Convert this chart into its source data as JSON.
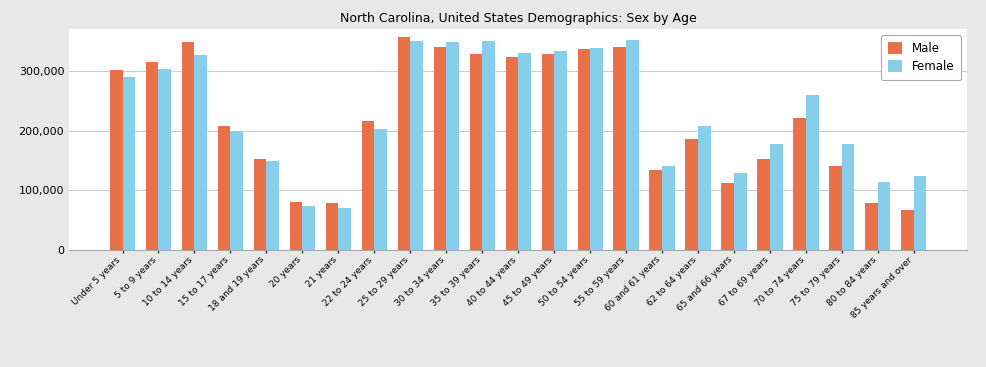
{
  "title": "North Carolina, United States Demographics: Sex by Age",
  "categories": [
    "Under 5 years",
    "5 to 9 years",
    "10 to 14 years",
    "15 to 17 years",
    "18 and 19 years",
    "20 years",
    "21 years",
    "22 to 24 years",
    "25 to 29 years",
    "30 to 34 years",
    "35 to 39 years",
    "40 to 44 years",
    "45 to 49 years",
    "50 to 54 years",
    "55 to 59 years",
    "60 and 61 years",
    "62 to 64 years",
    "65 and 66 years",
    "67 to 69 years",
    "70 to 74 years",
    "75 to 79 years",
    "80 to 84 years",
    "85 years and over"
  ],
  "male": [
    302000,
    315000,
    348000,
    207000,
    153000,
    80000,
    79000,
    216000,
    358000,
    340000,
    328000,
    323000,
    328000,
    337000,
    340000,
    134000,
    186000,
    112000,
    153000,
    221000,
    140000,
    79000,
    67000
  ],
  "female": [
    290000,
    303000,
    327000,
    200000,
    148000,
    74000,
    70000,
    202000,
    350000,
    348000,
    350000,
    331000,
    334000,
    338000,
    352000,
    140000,
    208000,
    128000,
    177000,
    259000,
    178000,
    114000,
    124000
  ],
  "male_color": "#E8714A",
  "female_color": "#87CEEB",
  "ylim": [
    0,
    370000
  ],
  "yticks": [
    0,
    100000,
    200000,
    300000
  ],
  "figure_bgcolor": "#e8e8e8",
  "plot_bgcolor": "#ffffff"
}
